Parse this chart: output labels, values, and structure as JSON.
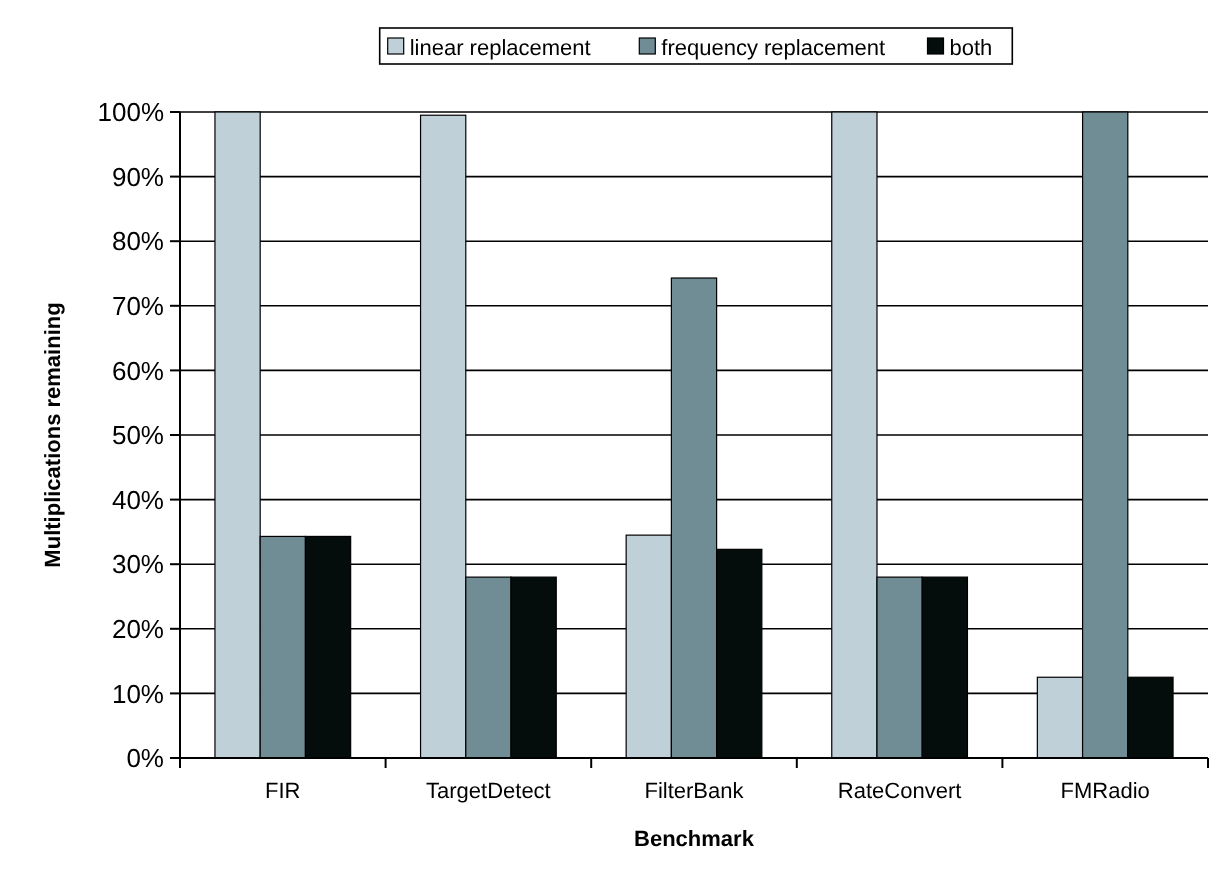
{
  "chart_data": {
    "type": "bar",
    "xlabel": "Benchmark",
    "ylabel": "Multiplications remaining",
    "categories": [
      "FIR",
      "TargetDetect",
      "FilterBank",
      "RateConvert",
      "FMRadio"
    ],
    "series": [
      {
        "name": "linear replacement",
        "color": "#c0d0d8",
        "values": [
          100,
          99.5,
          34.5,
          100,
          12.5
        ]
      },
      {
        "name": "frequency replacement",
        "color": "#708c94",
        "values": [
          34.3,
          28,
          74.3,
          28,
          100
        ]
      },
      {
        "name": "both",
        "color": "#040c0c",
        "values": [
          34.3,
          28,
          32.3,
          28,
          12.5
        ]
      }
    ],
    "ylim": [
      0,
      100
    ],
    "yticks": [
      {
        "value": 0,
        "label": "0%"
      },
      {
        "value": 10,
        "label": "10%"
      },
      {
        "value": 20,
        "label": "20%"
      },
      {
        "value": 30,
        "label": "30%"
      },
      {
        "value": 40,
        "label": "40%"
      },
      {
        "value": 50,
        "label": "50%"
      },
      {
        "value": 60,
        "label": "60%"
      },
      {
        "value": 70,
        "label": "70%"
      },
      {
        "value": 80,
        "label": "80%"
      },
      {
        "value": 90,
        "label": "90%"
      },
      {
        "value": 100,
        "label": "100%"
      }
    ],
    "grid": "y",
    "legend": "top"
  }
}
